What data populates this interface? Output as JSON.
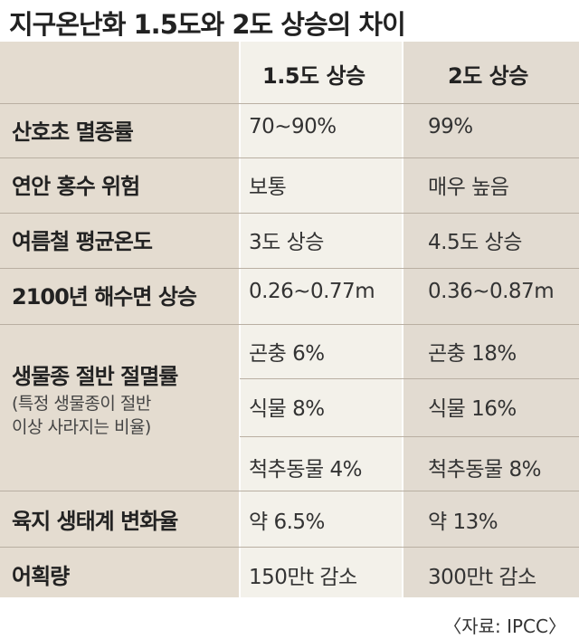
{
  "title": "지구온난화 1.5도와 2도 상승의 차이",
  "headers": [
    "",
    "1.5도 상승",
    "2도 상승"
  ],
  "rows": [
    {
      "label": "산호초 멸종률",
      "v15": "70~90%",
      "v2": "99%"
    },
    {
      "label": "연안 홍수 위험",
      "v15": "보통",
      "v2": "매우 높음"
    },
    {
      "label": "여름철 평균온도",
      "v15": "3도 상승",
      "v2": "4.5도 상승"
    },
    {
      "label": "2100년 해수면 상승",
      "v15": "0.26~0.77m",
      "v2": "0.36~0.87m"
    }
  ],
  "species": {
    "label": "생물종 절반 절멸률",
    "note_line1": "(특정 생물종이 절반",
    "note_line2": "이상 사라지는 비율)",
    "sub": [
      {
        "v15": "곤충 6%",
        "v2": "곤충 18%"
      },
      {
        "v15": "식물 8%",
        "v2": "식물 16%"
      },
      {
        "v15": "척추동물 4%",
        "v2": "척추동물 8%"
      }
    ]
  },
  "rows_after": [
    {
      "label": "육지 생태계 변화율",
      "v15": "약 6.5%",
      "v2": "약 13%"
    },
    {
      "label": "어획량",
      "v15": "150만t 감소",
      "v2": "300만t 감소"
    }
  ],
  "source": "〈자료: IPCC〉",
  "colors": {
    "col1_bg": "#e4dcd0",
    "col2_bg": "#f3f1ea",
    "col3_bg": "#e2dbd1"
  }
}
